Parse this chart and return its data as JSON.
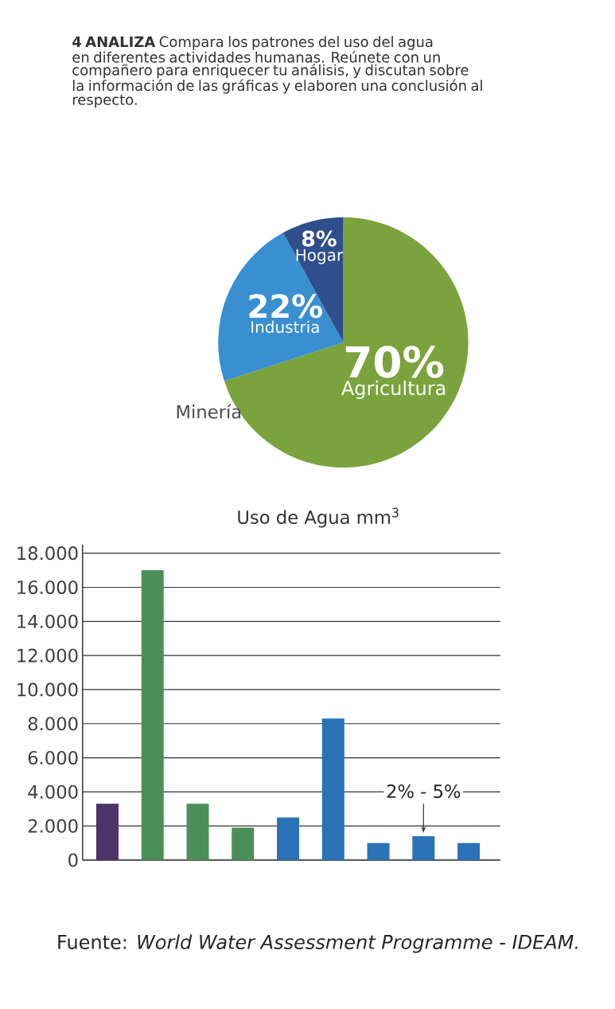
{
  "chart_data": [
    {
      "type": "pie",
      "categories": [
        "Agricultura",
        "Industria",
        "Hogar"
      ],
      "values": [
        70,
        22,
        8
      ],
      "value_labels": [
        "70%",
        "22%",
        "8%"
      ],
      "colors": [
        "#7aa33e",
        "#3a8fd0",
        "#2f4f8c"
      ],
      "annotations": [
        "**4 ANALIZA** Compara los patrones del uso del agua en diferentes actividades humanas. Reúnete con un compañero para enriquecer tu análisis, y discutan sobre la información de las gráficas y elaboren una conclusión al respecto.",
        "Minería"
      ]
    },
    {
      "type": "bar",
      "title": "Uso de Agua mm$^{3}$",
      "categories": [
        null,
        null,
        null,
        null,
        null,
        null,
        null,
        null,
        null
      ],
      "values": [
        3300,
        17000,
        3300,
        1900,
        2500,
        8300,
        1000,
        1400,
        1000
      ],
      "colors": [
        "#4a3468",
        "#4a8f5a",
        "#4a8f5a",
        "#4a8f5a",
        "#2a72b5",
        "#2a72b5",
        "#2a72b5",
        "#2a72b5",
        "#2a72b5"
      ],
      "ylim": [
        0,
        18500
      ],
      "yticks": [
        0,
        {
          "value": 2000,
          "label": "2.000"
        },
        {
          "value": 4000,
          "label": "4.000"
        },
        {
          "value": 6000,
          "label": "6.000"
        },
        {
          "value": 8000,
          "label": "8.000"
        },
        {
          "value": 10000,
          "label": "10.000"
        },
        {
          "value": 12000,
          "label": "12.000"
        },
        {
          "value": 14000,
          "label": "14.000"
        },
        {
          "value": 16000,
          "label": "16.000"
        },
        {
          "value": 18000,
          "label": "18.000"
        }
      ],
      "grid": "y",
      "annotations": [
        "2% - 5%",
        "Fuente: *World Water Assessment Programme - IDEAM.*"
      ]
    }
  ]
}
